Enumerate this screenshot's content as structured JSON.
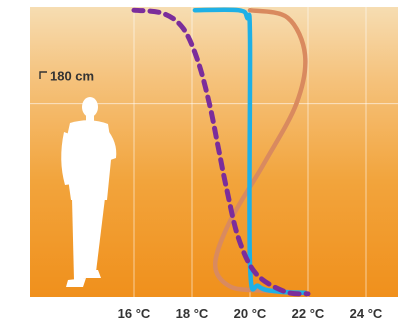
{
  "chart_data": {
    "type": "line",
    "title": "",
    "xlabel": "",
    "ylabel": "",
    "x_unit": "°C",
    "y_unit": "cm",
    "xlim": [
      14,
      26
    ],
    "ylim": [
      0,
      270
    ],
    "grid": true,
    "x_ticks": [
      {
        "value": 16,
        "label": "16 °C"
      },
      {
        "value": 18,
        "label": "18 °C"
      },
      {
        "value": 20,
        "label": "20 °C"
      },
      {
        "value": 22,
        "label": "22 °C"
      },
      {
        "value": 24,
        "label": "24 °C"
      }
    ],
    "annotation": {
      "label": "180 cm",
      "value": 180
    },
    "series": [
      {
        "style": "dashed",
        "color": "#7b2d9b",
        "points": [
          {
            "x": 16.0,
            "y": 267
          },
          {
            "x": 17.0,
            "y": 264
          },
          {
            "x": 17.7,
            "y": 250
          },
          {
            "x": 18.2,
            "y": 220
          },
          {
            "x": 18.6,
            "y": 180
          },
          {
            "x": 18.9,
            "y": 140
          },
          {
            "x": 19.2,
            "y": 100
          },
          {
            "x": 19.6,
            "y": 55
          },
          {
            "x": 20.2,
            "y": 22
          },
          {
            "x": 21.2,
            "y": 5
          },
          {
            "x": 22.0,
            "y": 3
          }
        ]
      },
      {
        "style": "solid",
        "color": "#1eb0e6",
        "points": [
          {
            "x": 18.1,
            "y": 267
          },
          {
            "x": 19.6,
            "y": 267
          },
          {
            "x": 19.9,
            "y": 260
          },
          {
            "x": 20.0,
            "y": 240
          },
          {
            "x": 20.0,
            "y": 30
          },
          {
            "x": 20.3,
            "y": 10
          },
          {
            "x": 21.0,
            "y": 5
          },
          {
            "x": 21.9,
            "y": 4
          }
        ]
      },
      {
        "style": "solid",
        "color": "#d98a5f",
        "points": [
          {
            "x": 20.0,
            "y": 267
          },
          {
            "x": 21.3,
            "y": 260
          },
          {
            "x": 21.9,
            "y": 225
          },
          {
            "x": 21.6,
            "y": 180
          },
          {
            "x": 20.5,
            "y": 125
          },
          {
            "x": 19.3,
            "y": 70
          },
          {
            "x": 18.8,
            "y": 30
          },
          {
            "x": 19.3,
            "y": 10
          },
          {
            "x": 20.4,
            "y": 6
          },
          {
            "x": 21.3,
            "y": 5
          }
        ]
      }
    ]
  }
}
